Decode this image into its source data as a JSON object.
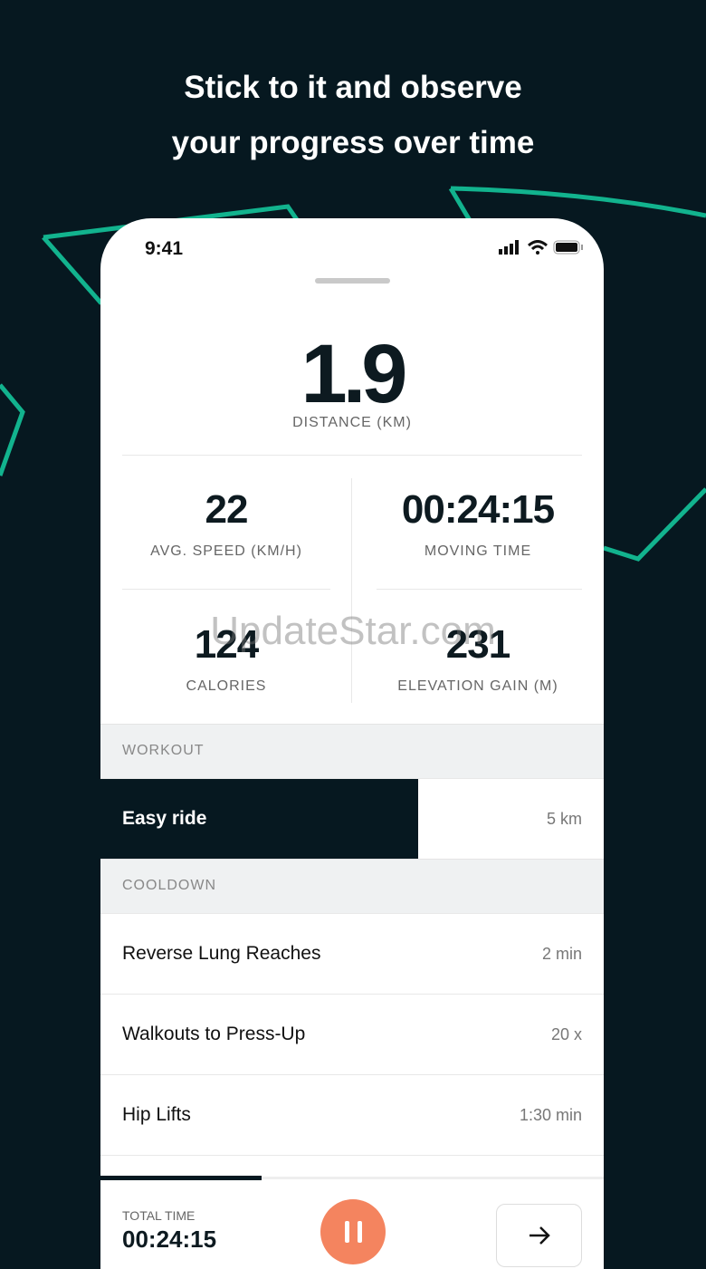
{
  "headline": {
    "line1": "Stick to it and observe",
    "line2": "your progress over time"
  },
  "colors": {
    "background": "#061820",
    "accent_lines": "#12b38e",
    "pause_button": "#f4845f"
  },
  "status_bar": {
    "time": "9:41",
    "icons": [
      "signal-icon",
      "wifi-icon",
      "battery-icon"
    ]
  },
  "distance": {
    "value": "1.9",
    "label": "DISTANCE (KM)"
  },
  "stats": [
    {
      "value": "22",
      "label": "AVG. SPEED (KM/H)"
    },
    {
      "value": "00:24:15",
      "label": "MOVING TIME"
    },
    {
      "value": "124",
      "label": "CALORIES"
    },
    {
      "value": "231",
      "label": "ELEVATION GAIN (M)"
    }
  ],
  "sections": [
    {
      "title": "WORKOUT",
      "items": [
        {
          "name": "Easy ride",
          "value": "5 km",
          "active": true
        }
      ]
    },
    {
      "title": "COOLDOWN",
      "items": [
        {
          "name": "Reverse Lung Reaches",
          "value": "2 min"
        },
        {
          "name": "Walkouts to Press-Up",
          "value": "20 x"
        },
        {
          "name": "Hip Lifts",
          "value": "1:30 min"
        }
      ]
    }
  ],
  "footer": {
    "total_time_label": "TOTAL TIME",
    "total_time": "00:24:15",
    "progress_percent": 32,
    "next_icon": "arrow-right-icon",
    "pause_icon": "pause-icon"
  },
  "watermark": "UpdateStar.com"
}
